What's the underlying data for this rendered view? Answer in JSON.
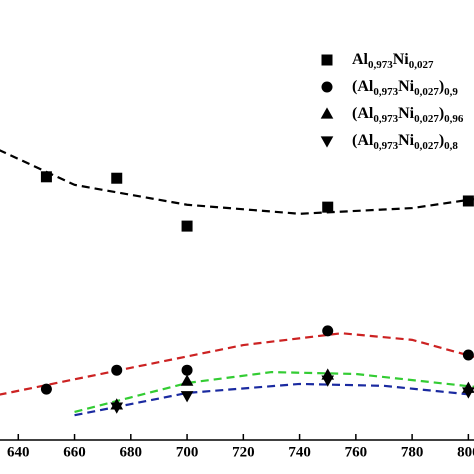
{
  "chart_data": {
    "type": "scatter",
    "x": [
      650,
      675,
      700,
      750,
      800
    ],
    "series": [
      {
        "name": "Al0,973Ni0,027",
        "marker": "square",
        "color": "#000000",
        "x": [
          650,
          675,
          700,
          750,
          800
        ],
        "values": [
          62.7,
          62.4,
          52.3,
          56.3,
          57.6
        ]
      },
      {
        "name": "(Al0,973Ni0,027)0,9",
        "marker": "circle",
        "color": "#000000",
        "x": [
          650,
          675,
          700,
          750,
          800
        ],
        "values": [
          17.9,
          21.9,
          21.9,
          30.2,
          25.1
        ]
      },
      {
        "name": "(Al0,973Ni0,027)0,96",
        "marker": "triangle-up",
        "color": "#000000",
        "x": [
          675,
          700,
          750,
          800
        ],
        "values": [
          14.6,
          19.6,
          20.9,
          18.1
        ]
      },
      {
        "name": "(Al0,973Ni0,027)0,8",
        "marker": "triangle-down",
        "color": "#000000",
        "x": [
          675,
          700,
          750,
          800
        ],
        "values": [
          14.1,
          16.5,
          19.8,
          17.3
        ]
      }
    ],
    "fits": [
      {
        "color": "#000000",
        "x": [
          633,
          660,
          700,
          740,
          780,
          802
        ],
        "values": [
          68.4,
          61,
          56.8,
          54.9,
          56.1,
          58
        ]
      },
      {
        "color": "#cc2222",
        "x": [
          633,
          680,
          720,
          755,
          780,
          802
        ],
        "values": [
          16.7,
          22.4,
          27.2,
          29.7,
          28.3,
          24.7
        ]
      },
      {
        "color": "#33cc33",
        "x": [
          660,
          700,
          730,
          760,
          802
        ],
        "values": [
          13.1,
          19.2,
          21.5,
          21.1,
          18.4
        ]
      },
      {
        "color": "#1a2aa0",
        "x": [
          660,
          700,
          740,
          770,
          802
        ],
        "values": [
          12.4,
          17.1,
          19,
          18.6,
          16.7
        ]
      }
    ],
    "xlim": [
      633.5,
      802
    ],
    "ylim": [
      0,
      100
    ],
    "xticks": [
      640,
      660,
      680,
      700,
      720,
      740,
      760,
      780,
      800
    ],
    "legend": "upper right"
  }
}
